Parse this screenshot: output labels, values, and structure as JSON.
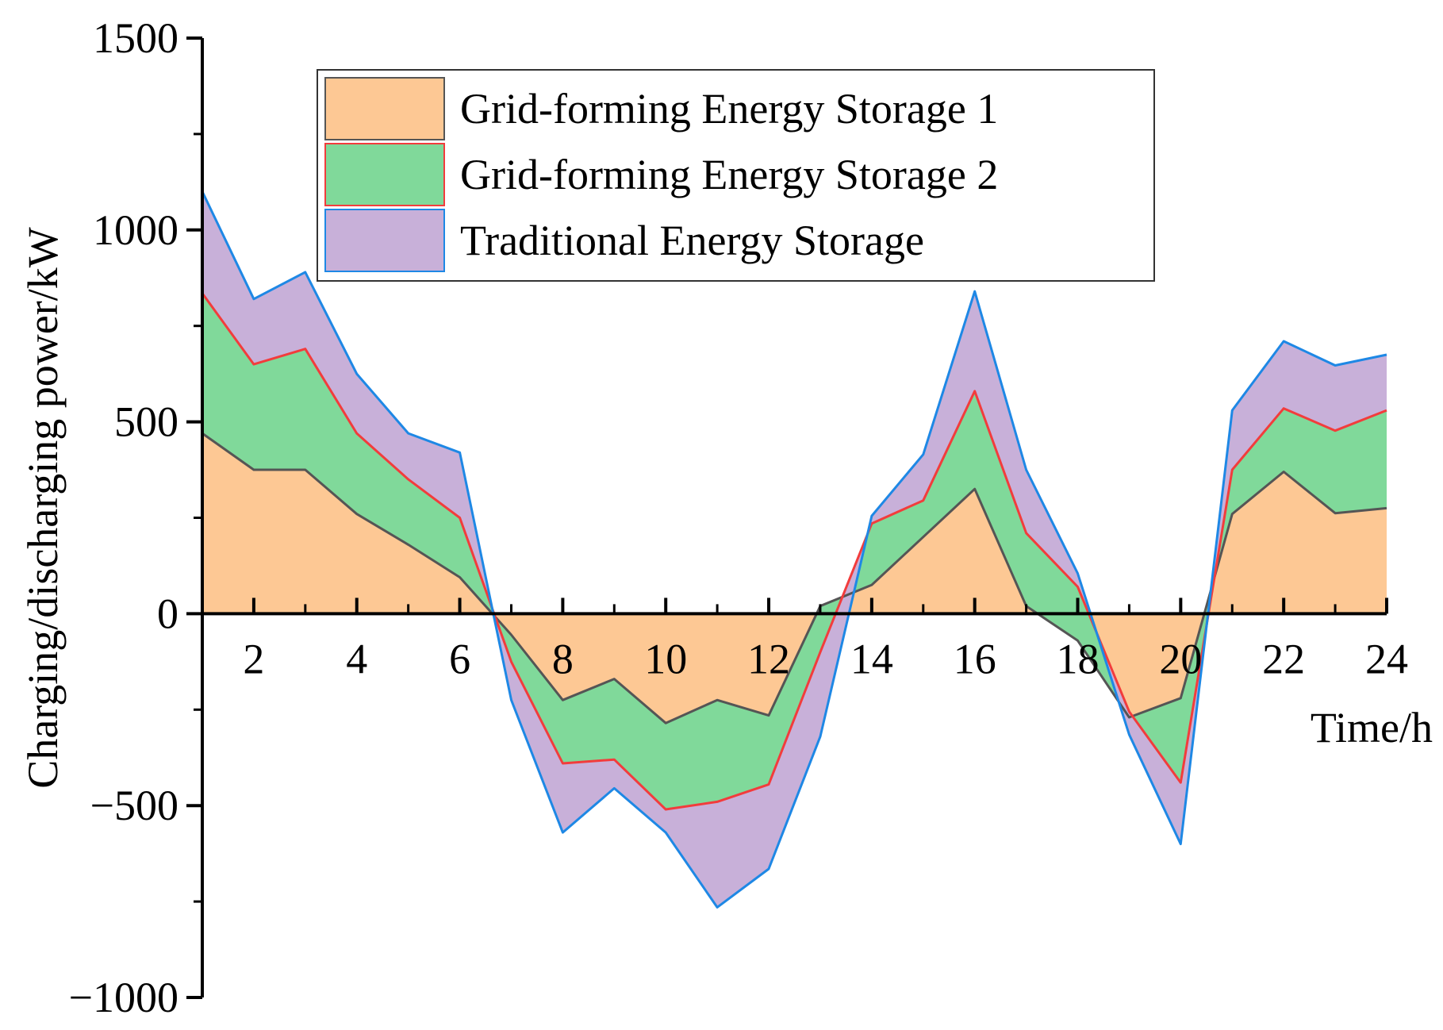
{
  "chart_data": {
    "type": "area",
    "stacked": true,
    "title": "",
    "xlabel": "Time/h",
    "ylabel": "Charging/discharging power/kW",
    "xlim": [
      1,
      24
    ],
    "ylim": [
      -1000,
      1500
    ],
    "x_ticks": [
      2,
      4,
      6,
      8,
      10,
      12,
      14,
      16,
      18,
      20,
      22,
      24
    ],
    "y_ticks": [
      -1000,
      -500,
      0,
      500,
      1000,
      1500
    ],
    "y_tick_labels": [
      "−1000",
      "−500",
      "0",
      "500",
      "1000",
      "1500"
    ],
    "legend_position": "top-center",
    "x": [
      1,
      2,
      3,
      4,
      5,
      6,
      7,
      8,
      9,
      10,
      11,
      12,
      13,
      14,
      15,
      16,
      17,
      18,
      19,
      20,
      21,
      22,
      23,
      24
    ],
    "series": [
      {
        "name": "Grid-forming Energy Storage 1",
        "fill": "#fdc894",
        "line": "#555555",
        "values": [
          470,
          375,
          375,
          260,
          180,
          95,
          -55,
          -225,
          -170,
          -285,
          -225,
          -265,
          20,
          75,
          200,
          325,
          20,
          -70,
          -270,
          -220,
          260,
          370,
          262,
          275
        ]
      },
      {
        "name": "Grid-forming Energy Storage 2",
        "fill": "#80d99a",
        "line": "#f23c3c",
        "values": [
          365,
          275,
          315,
          210,
          170,
          155,
          -70,
          -165,
          -210,
          -225,
          -265,
          -180,
          -120,
          160,
          95,
          255,
          190,
          140,
          15,
          -220,
          115,
          165,
          215,
          255
        ]
      },
      {
        "name": "Traditional Energy Storage",
        "fill": "#c8b0d9",
        "line": "#1e88e5",
        "values": [
          265,
          170,
          200,
          155,
          120,
          170,
          -100,
          -180,
          -75,
          -60,
          -275,
          -220,
          -220,
          20,
          120,
          260,
          165,
          35,
          -60,
          -160,
          155,
          175,
          170,
          145
        ]
      }
    ]
  }
}
